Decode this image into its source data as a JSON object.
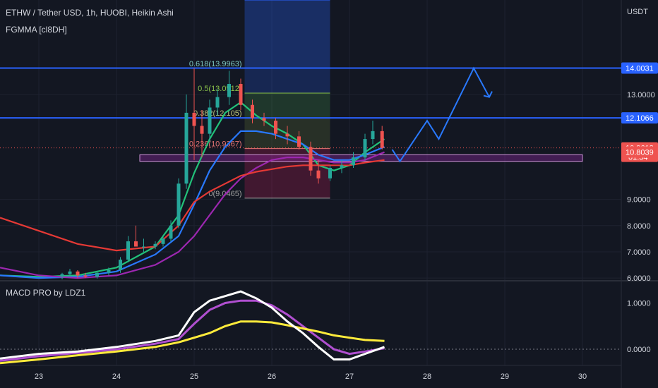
{
  "header": {
    "symbol_line": "ETHW / Tether USD, 1h, HUOBI, Heikin Ashi",
    "indicator": "FGMMA [cl8DH]",
    "macd_label": "MACD PRO by LDZ1"
  },
  "colors": {
    "background": "#131722",
    "bull": "#26a69a",
    "bear": "#ef5350",
    "blue_line": "#2962ff",
    "ema_teal": "#22c27a",
    "ema_blue": "#2979ff",
    "ema_purple": "#9c27b0",
    "ema_red": "#e53935",
    "zone": "#9c27b0",
    "macd_line": "#ffffff",
    "signal_line": "#ffeb3b"
  },
  "chart_data": [
    {
      "type": "candlestick",
      "title": "ETHW / Tether USD, 1h, HUOBI, Heikin Ashi",
      "y_unit": "USDT",
      "ylim": [
        5.95,
        16.6
      ],
      "x_ticks": [
        "23",
        "24",
        "25",
        "26",
        "27",
        "28",
        "29",
        "30"
      ],
      "x_range": [
        22.5,
        30.5
      ],
      "y_ticks": [
        {
          "value": 6.0,
          "label": "6.0000"
        },
        {
          "value": 7.0,
          "label": "7.0000"
        },
        {
          "value": 8.0,
          "label": "8.0000"
        },
        {
          "value": 9.0,
          "label": "9.0000"
        },
        {
          "value": 13.0,
          "label": "13.0000"
        }
      ],
      "price_tags": [
        {
          "value": 14.0031,
          "label": "14.0031",
          "color": "#2962ff"
        },
        {
          "value": 12.1066,
          "label": "12.1066",
          "color": "#2962ff"
        },
        {
          "value": 10.9618,
          "label": "10.9618",
          "sublabel": "01:34",
          "color": "#ef5350"
        },
        {
          "value": 10.8039,
          "label": "10.8039",
          "color": "#ef5350"
        }
      ],
      "horizontal_levels": [
        14.0031,
        12.1066
      ],
      "fib_levels": [
        {
          "label": "0.618(13.9963)",
          "value": 13.9963,
          "color": "#7ec8c0"
        },
        {
          "label": "0.5(13.0512)",
          "value": 13.0512,
          "color": "#8bc34a"
        },
        {
          "label": "0.382(12.105)",
          "value": 12.105,
          "color": "#b8c17a"
        },
        {
          "label": "0.236(10.9367)",
          "value": 10.9367,
          "color": "#e57373"
        },
        {
          "label": "0(9.0465)",
          "value": 9.0465,
          "color": "#a0a0a0"
        }
      ],
      "fib_box": {
        "x_start": 25.65,
        "x_end": 26.75,
        "top": 16.6,
        "bottom": 9.0465
      },
      "zone": {
        "x_start": 24.3,
        "x_end": 30.0,
        "top": 10.7,
        "bottom": 10.45
      },
      "projection_path": [
        {
          "x": 27.55,
          "y": 10.9
        },
        {
          "x": 27.65,
          "y": 10.45
        },
        {
          "x": 28.0,
          "y": 12.0
        },
        {
          "x": 28.15,
          "y": 11.3
        },
        {
          "x": 28.6,
          "y": 14.0
        },
        {
          "x": 28.8,
          "y": 12.9
        }
      ],
      "candles": [
        {
          "x": 23.3,
          "o": 6.05,
          "h": 6.2,
          "l": 5.95,
          "c": 6.15
        },
        {
          "x": 23.4,
          "o": 6.15,
          "h": 6.35,
          "l": 6.05,
          "c": 6.25
        },
        {
          "x": 23.5,
          "o": 6.25,
          "h": 6.3,
          "l": 6.0,
          "c": 6.1
        },
        {
          "x": 23.6,
          "o": 6.1,
          "h": 6.2,
          "l": 6.0,
          "c": 6.05
        },
        {
          "x": 23.75,
          "o": 6.05,
          "h": 6.25,
          "l": 5.98,
          "c": 6.2
        },
        {
          "x": 23.9,
          "o": 6.2,
          "h": 6.4,
          "l": 6.1,
          "c": 6.3
        },
        {
          "x": 24.05,
          "o": 6.3,
          "h": 6.8,
          "l": 6.2,
          "c": 6.7
        },
        {
          "x": 24.15,
          "o": 6.7,
          "h": 7.6,
          "l": 6.6,
          "c": 7.4
        },
        {
          "x": 24.25,
          "o": 7.4,
          "h": 8.0,
          "l": 7.2,
          "c": 7.2
        },
        {
          "x": 24.35,
          "o": 7.2,
          "h": 7.5,
          "l": 7.0,
          "c": 7.2
        },
        {
          "x": 24.5,
          "o": 7.2,
          "h": 7.4,
          "l": 7.1,
          "c": 7.3
        },
        {
          "x": 24.6,
          "o": 7.3,
          "h": 7.6,
          "l": 7.2,
          "c": 7.5
        },
        {
          "x": 24.7,
          "o": 7.5,
          "h": 8.2,
          "l": 7.4,
          "c": 8.0
        },
        {
          "x": 24.8,
          "o": 8.0,
          "h": 9.8,
          "l": 7.9,
          "c": 9.6
        },
        {
          "x": 24.9,
          "o": 9.6,
          "h": 13.0,
          "l": 9.4,
          "c": 12.3
        },
        {
          "x": 25.0,
          "o": 12.3,
          "h": 14.0,
          "l": 10.5,
          "c": 11.8
        },
        {
          "x": 25.1,
          "o": 11.8,
          "h": 12.4,
          "l": 10.6,
          "c": 11.5
        },
        {
          "x": 25.2,
          "o": 11.5,
          "h": 12.8,
          "l": 11.2,
          "c": 12.5
        },
        {
          "x": 25.3,
          "o": 12.5,
          "h": 13.2,
          "l": 12.2,
          "c": 12.9
        },
        {
          "x": 25.45,
          "o": 12.9,
          "h": 13.9,
          "l": 12.6,
          "c": 13.4
        },
        {
          "x": 25.6,
          "o": 13.4,
          "h": 13.6,
          "l": 12.4,
          "c": 12.6
        },
        {
          "x": 25.75,
          "o": 12.6,
          "h": 12.8,
          "l": 11.9,
          "c": 12.1
        },
        {
          "x": 25.9,
          "o": 12.1,
          "h": 12.3,
          "l": 11.8,
          "c": 12.0
        },
        {
          "x": 26.05,
          "o": 12.0,
          "h": 12.1,
          "l": 11.3,
          "c": 11.5
        },
        {
          "x": 26.2,
          "o": 11.5,
          "h": 11.8,
          "l": 11.1,
          "c": 11.4
        },
        {
          "x": 26.35,
          "o": 11.4,
          "h": 11.6,
          "l": 10.9,
          "c": 11.0
        },
        {
          "x": 26.5,
          "o": 11.0,
          "h": 11.2,
          "l": 9.9,
          "c": 10.1
        },
        {
          "x": 26.6,
          "o": 10.1,
          "h": 10.5,
          "l": 9.6,
          "c": 9.8
        },
        {
          "x": 26.75,
          "o": 9.8,
          "h": 10.3,
          "l": 9.7,
          "c": 10.2
        },
        {
          "x": 26.9,
          "o": 10.2,
          "h": 10.5,
          "l": 10.0,
          "c": 10.3
        },
        {
          "x": 27.05,
          "o": 10.3,
          "h": 10.8,
          "l": 10.2,
          "c": 10.6
        },
        {
          "x": 27.2,
          "o": 10.6,
          "h": 11.5,
          "l": 10.5,
          "c": 11.3
        },
        {
          "x": 27.3,
          "o": 11.3,
          "h": 12.0,
          "l": 11.1,
          "c": 11.6
        },
        {
          "x": 27.42,
          "o": 11.6,
          "h": 11.8,
          "l": 10.9,
          "c": 10.96
        }
      ],
      "moving_averages": [
        {
          "color": "#22c27a",
          "points": [
            [
              22.5,
              6.1
            ],
            [
              23.0,
              6.05
            ],
            [
              23.5,
              6.1
            ],
            [
              24.0,
              6.4
            ],
            [
              24.5,
              7.2
            ],
            [
              24.8,
              8.4
            ],
            [
              25.0,
              10.0
            ],
            [
              25.2,
              11.3
            ],
            [
              25.4,
              12.3
            ],
            [
              25.6,
              12.7
            ],
            [
              25.8,
              12.2
            ],
            [
              26.0,
              11.8
            ],
            [
              26.2,
              11.5
            ],
            [
              26.4,
              11.1
            ],
            [
              26.6,
              10.3
            ],
            [
              26.8,
              10.1
            ],
            [
              27.0,
              10.3
            ],
            [
              27.2,
              10.8
            ],
            [
              27.45,
              11.3
            ]
          ]
        },
        {
          "color": "#2979ff",
          "points": [
            [
              22.5,
              6.1
            ],
            [
              23.0,
              6.0
            ],
            [
              23.5,
              6.05
            ],
            [
              24.0,
              6.25
            ],
            [
              24.5,
              6.9
            ],
            [
              24.8,
              7.6
            ],
            [
              25.0,
              8.8
            ],
            [
              25.2,
              10.1
            ],
            [
              25.4,
              11.0
            ],
            [
              25.6,
              11.6
            ],
            [
              25.8,
              11.6
            ],
            [
              26.0,
              11.5
            ],
            [
              26.2,
              11.3
            ],
            [
              26.4,
              11.1
            ],
            [
              26.6,
              10.7
            ],
            [
              26.8,
              10.5
            ],
            [
              27.0,
              10.5
            ],
            [
              27.2,
              10.7
            ],
            [
              27.45,
              11.0
            ]
          ]
        },
        {
          "color": "#9c27b0",
          "points": [
            [
              22.5,
              6.4
            ],
            [
              23.0,
              6.1
            ],
            [
              23.5,
              6.0
            ],
            [
              24.0,
              6.1
            ],
            [
              24.5,
              6.5
            ],
            [
              24.8,
              7.0
            ],
            [
              25.0,
              7.6
            ],
            [
              25.2,
              8.4
            ],
            [
              25.4,
              9.2
            ],
            [
              25.6,
              9.8
            ],
            [
              25.8,
              10.2
            ],
            [
              26.0,
              10.5
            ],
            [
              26.2,
              10.6
            ],
            [
              26.4,
              10.6
            ],
            [
              26.6,
              10.5
            ],
            [
              26.8,
              10.4
            ],
            [
              27.0,
              10.4
            ],
            [
              27.2,
              10.5
            ],
            [
              27.45,
              10.8
            ]
          ]
        },
        {
          "color": "#e53935",
          "points": [
            [
              22.5,
              8.3
            ],
            [
              23.0,
              7.8
            ],
            [
              23.5,
              7.3
            ],
            [
              24.0,
              7.05
            ],
            [
              24.5,
              7.2
            ],
            [
              24.8,
              8.0
            ],
            [
              25.0,
              8.9
            ],
            [
              25.2,
              9.3
            ],
            [
              25.4,
              9.6
            ],
            [
              25.6,
              9.9
            ],
            [
              25.8,
              10.05
            ],
            [
              26.0,
              10.15
            ],
            [
              26.2,
              10.25
            ],
            [
              26.4,
              10.3
            ],
            [
              26.6,
              10.3
            ],
            [
              26.8,
              10.3
            ],
            [
              27.0,
              10.3
            ],
            [
              27.2,
              10.4
            ],
            [
              27.45,
              10.5
            ]
          ]
        }
      ]
    },
    {
      "type": "line",
      "title": "MACD PRO by LDZ1",
      "ylim": [
        -0.35,
        1.45
      ],
      "y_ticks": [
        {
          "value": 1.0,
          "label": "1.0000"
        },
        {
          "value": 0.0,
          "label": "0.0000"
        }
      ],
      "series": [
        {
          "color": "#ffffff",
          "points": [
            [
              22.5,
              -0.2
            ],
            [
              23.0,
              -0.1
            ],
            [
              23.5,
              -0.05
            ],
            [
              24.0,
              0.05
            ],
            [
              24.5,
              0.18
            ],
            [
              24.8,
              0.3
            ],
            [
              25.0,
              0.8
            ],
            [
              25.2,
              1.05
            ],
            [
              25.4,
              1.15
            ],
            [
              25.6,
              1.25
            ],
            [
              25.8,
              1.1
            ],
            [
              26.0,
              0.9
            ],
            [
              26.2,
              0.6
            ],
            [
              26.4,
              0.35
            ],
            [
              26.6,
              0.05
            ],
            [
              26.8,
              -0.22
            ],
            [
              27.0,
              -0.22
            ],
            [
              27.2,
              -0.1
            ],
            [
              27.45,
              0.05
            ]
          ]
        },
        {
          "color": "#ffeb3b",
          "points": [
            [
              22.5,
              -0.3
            ],
            [
              23.0,
              -0.22
            ],
            [
              23.5,
              -0.13
            ],
            [
              24.0,
              -0.05
            ],
            [
              24.5,
              0.05
            ],
            [
              24.8,
              0.15
            ],
            [
              25.0,
              0.25
            ],
            [
              25.2,
              0.35
            ],
            [
              25.4,
              0.5
            ],
            [
              25.6,
              0.6
            ],
            [
              25.8,
              0.6
            ],
            [
              26.0,
              0.58
            ],
            [
              26.2,
              0.52
            ],
            [
              26.4,
              0.45
            ],
            [
              26.6,
              0.38
            ],
            [
              26.8,
              0.3
            ],
            [
              27.0,
              0.25
            ],
            [
              27.2,
              0.2
            ],
            [
              27.45,
              0.18
            ]
          ]
        },
        {
          "color": "#b04fd0",
          "points": [
            [
              22.5,
              -0.25
            ],
            [
              23.0,
              -0.15
            ],
            [
              23.5,
              -0.08
            ],
            [
              24.0,
              0.0
            ],
            [
              24.5,
              0.12
            ],
            [
              24.8,
              0.22
            ],
            [
              25.0,
              0.55
            ],
            [
              25.2,
              0.85
            ],
            [
              25.4,
              1.0
            ],
            [
              25.6,
              1.05
            ],
            [
              25.8,
              1.05
            ],
            [
              26.0,
              0.95
            ],
            [
              26.2,
              0.75
            ],
            [
              26.4,
              0.5
            ],
            [
              26.6,
              0.25
            ],
            [
              26.8,
              0.0
            ],
            [
              27.0,
              -0.1
            ],
            [
              27.2,
              -0.05
            ],
            [
              27.45,
              0.02
            ]
          ]
        }
      ]
    }
  ]
}
